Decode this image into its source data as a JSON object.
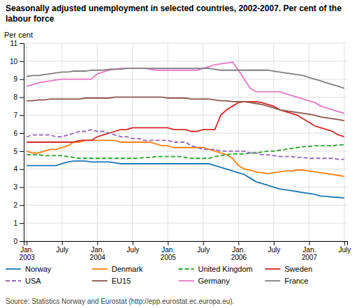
{
  "chart_data": {
    "type": "line",
    "title": "Seasonally adjusted unemployment in selected countries, 2002-2007. Per cent of the labour force",
    "y_label": "Per cent",
    "source": "Source: Statistics Norway and Eurostat (http://epp.eurostat.ec.europa.eu).",
    "categories": [
      "Jan.\n2003",
      null,
      null,
      null,
      null,
      null,
      "July",
      null,
      null,
      null,
      null,
      null,
      "Jan.\n2004",
      null,
      null,
      null,
      null,
      null,
      "July",
      null,
      null,
      null,
      null,
      null,
      "Jan.\n2005",
      null,
      null,
      null,
      null,
      null,
      "July",
      null,
      null,
      null,
      null,
      null,
      "Jan.\n2006",
      null,
      null,
      null,
      null,
      null,
      "July",
      null,
      null,
      null,
      null,
      null,
      "Jan.\n2007",
      null,
      null,
      null,
      null,
      null,
      "July"
    ],
    "series": [
      {
        "name": "Norway",
        "line_style": "solid",
        "values": [
          4.2,
          4.2,
          4.2,
          4.2,
          4.2,
          4.2,
          4.3,
          4.4,
          4.45,
          4.45,
          4.45,
          4.4,
          4.4,
          4.4,
          4.4,
          4.35,
          4.3,
          4.3,
          4.3,
          4.3,
          4.3,
          4.3,
          4.3,
          4.3,
          4.3,
          4.3,
          4.3,
          4.3,
          4.3,
          4.3,
          4.3,
          4.3,
          4.2,
          4.1,
          4.0,
          3.9,
          3.8,
          3.7,
          3.5,
          3.3,
          3.2,
          3.1,
          3.0,
          2.9,
          2.85,
          2.8,
          2.75,
          2.7,
          2.65,
          2.6,
          2.5,
          2.48,
          2.45,
          2.43,
          2.4
        ]
      },
      {
        "name": "Denmark",
        "line_style": "solid",
        "values": [
          5.0,
          4.9,
          4.9,
          5.0,
          5.1,
          5.1,
          5.2,
          5.3,
          5.5,
          5.5,
          5.6,
          5.6,
          5.6,
          5.6,
          5.6,
          5.6,
          5.5,
          5.5,
          5.5,
          5.5,
          5.5,
          5.5,
          5.4,
          5.3,
          5.3,
          5.2,
          5.2,
          5.2,
          5.2,
          5.2,
          5.2,
          5.1,
          5.0,
          4.9,
          4.8,
          4.6,
          4.2,
          4.0,
          3.95,
          3.85,
          3.8,
          3.75,
          3.8,
          3.85,
          3.9,
          3.9,
          3.95,
          3.95,
          3.9,
          3.85,
          3.8,
          3.75,
          3.7,
          3.65,
          3.6
        ]
      },
      {
        "name": "United Kingdom",
        "line_style": "dashed",
        "values": [
          4.8,
          4.8,
          4.8,
          4.75,
          4.75,
          4.75,
          4.75,
          4.7,
          4.65,
          4.6,
          4.6,
          4.6,
          4.6,
          4.6,
          4.6,
          4.6,
          4.6,
          4.6,
          4.6,
          4.6,
          4.65,
          4.65,
          4.7,
          4.7,
          4.7,
          4.7,
          4.7,
          4.65,
          4.6,
          4.6,
          4.6,
          4.6,
          4.7,
          4.75,
          4.8,
          4.85,
          4.85,
          4.85,
          4.9,
          4.9,
          4.95,
          5.0,
          5.0,
          5.05,
          5.1,
          5.15,
          5.2,
          5.25,
          5.25,
          5.3,
          5.3,
          5.3,
          5.3,
          5.35,
          5.35
        ]
      },
      {
        "name": "Sweden",
        "line_style": "solid",
        "values": [
          5.5,
          5.5,
          5.5,
          5.5,
          5.5,
          5.5,
          5.5,
          5.5,
          5.5,
          5.6,
          5.6,
          5.6,
          5.8,
          5.9,
          6.0,
          6.1,
          6.2,
          6.2,
          6.3,
          6.3,
          6.3,
          6.3,
          6.3,
          6.3,
          6.3,
          6.2,
          6.2,
          6.2,
          6.1,
          6.1,
          6.2,
          6.2,
          6.2,
          7.0,
          7.3,
          7.5,
          7.7,
          7.75,
          7.75,
          7.75,
          7.7,
          7.6,
          7.5,
          7.3,
          7.2,
          7.1,
          7.0,
          6.8,
          6.6,
          6.4,
          6.3,
          6.2,
          6.1,
          5.9,
          5.8
        ]
      },
      {
        "name": "USA",
        "line_style": "dashed",
        "values": [
          5.8,
          5.9,
          5.9,
          5.9,
          5.9,
          5.8,
          5.8,
          5.9,
          6.0,
          6.1,
          6.1,
          6.2,
          6.1,
          6.1,
          6.0,
          5.9,
          5.8,
          5.8,
          5.7,
          5.7,
          5.6,
          5.6,
          5.6,
          5.6,
          5.6,
          5.5,
          5.5,
          5.5,
          5.3,
          5.2,
          5.1,
          5.1,
          5.1,
          5.0,
          5.0,
          5.0,
          5.0,
          5.0,
          4.9,
          4.9,
          4.8,
          4.8,
          4.75,
          4.7,
          4.7,
          4.7,
          4.65,
          4.65,
          4.6,
          4.6,
          4.6,
          4.6,
          4.6,
          4.55,
          4.55
        ]
      },
      {
        "name": "EU15",
        "line_style": "solid",
        "values": [
          7.8,
          7.8,
          7.85,
          7.85,
          7.9,
          7.9,
          7.9,
          7.9,
          7.9,
          7.9,
          7.95,
          7.95,
          7.95,
          7.95,
          7.95,
          8.0,
          8.0,
          8.0,
          8.0,
          8.0,
          8.0,
          8.0,
          8.0,
          8.0,
          7.95,
          7.95,
          7.95,
          7.95,
          7.9,
          7.9,
          7.9,
          7.9,
          7.85,
          7.8,
          7.8,
          7.75,
          7.75,
          7.75,
          7.7,
          7.65,
          7.6,
          7.5,
          7.4,
          7.3,
          7.25,
          7.2,
          7.15,
          7.1,
          7.05,
          7.0,
          6.9,
          6.85,
          6.8,
          6.75,
          6.7
        ]
      },
      {
        "name": "Germany",
        "line_style": "solid",
        "values": [
          8.6,
          8.7,
          8.8,
          8.85,
          8.9,
          8.95,
          9.0,
          9.0,
          9.0,
          9.0,
          9.0,
          9.0,
          9.3,
          9.4,
          9.5,
          9.55,
          9.6,
          9.6,
          9.6,
          9.6,
          9.6,
          9.55,
          9.5,
          9.5,
          9.5,
          9.5,
          9.5,
          9.5,
          9.5,
          9.5,
          9.6,
          9.7,
          9.8,
          9.85,
          9.9,
          9.95,
          9.5,
          9.0,
          8.5,
          8.3,
          8.3,
          8.3,
          8.3,
          8.3,
          8.2,
          8.1,
          8.0,
          7.9,
          7.8,
          7.7,
          7.5,
          7.4,
          7.3,
          7.2,
          7.1
        ]
      },
      {
        "name": "France",
        "line_style": "solid",
        "values": [
          9.15,
          9.2,
          9.2,
          9.25,
          9.3,
          9.35,
          9.4,
          9.4,
          9.45,
          9.45,
          9.45,
          9.5,
          9.5,
          9.5,
          9.55,
          9.55,
          9.55,
          9.6,
          9.6,
          9.6,
          9.6,
          9.6,
          9.6,
          9.6,
          9.6,
          9.6,
          9.6,
          9.6,
          9.6,
          9.6,
          9.6,
          9.6,
          9.55,
          9.5,
          9.5,
          9.5,
          9.5,
          9.5,
          9.5,
          9.5,
          9.5,
          9.5,
          9.45,
          9.4,
          9.35,
          9.3,
          9.25,
          9.2,
          9.1,
          9.0,
          8.9,
          8.8,
          8.7,
          8.6,
          8.5
        ]
      }
    ],
    "ylim": [
      0,
      11
    ],
    "yticks": [
      0,
      1,
      2,
      3,
      4,
      5,
      6,
      7,
      8,
      9,
      10,
      11
    ],
    "grid": true,
    "legend": "bottom"
  }
}
